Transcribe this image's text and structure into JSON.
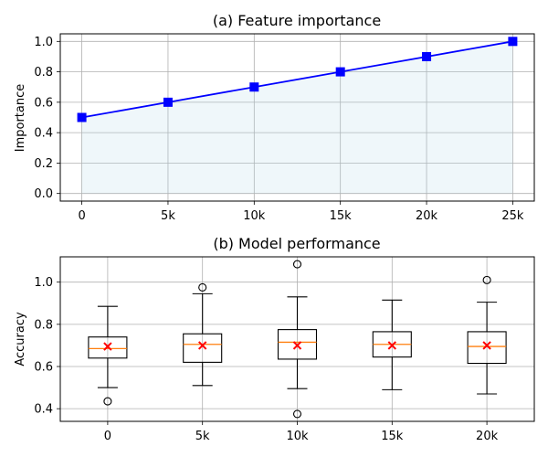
{
  "chart_data": [
    {
      "type": "line",
      "title": "(a) Feature importance",
      "xlabel": "",
      "ylabel": "Importance",
      "x": [
        0,
        5000,
        10000,
        15000,
        20000,
        25000
      ],
      "x_tick_labels": [
        "0",
        "5k",
        "10k",
        "15k",
        "20k",
        "25k"
      ],
      "y_tick_labels": [
        "0.0",
        "0.2",
        "0.4",
        "0.6",
        "0.8",
        "1.0"
      ],
      "series": [
        {
          "values": [
            0.5,
            0.6,
            0.7,
            0.8,
            0.9,
            1.0
          ],
          "color": "#0000ff",
          "marker": "square",
          "fill_below": true,
          "fill_color": "#add8e6"
        }
      ],
      "xlim": [
        -1250,
        26250
      ],
      "ylim": [
        -0.05,
        1.05
      ],
      "grid": true
    },
    {
      "type": "box",
      "title": "(b) Model performance",
      "xlabel": "",
      "ylabel": "Accuracy",
      "categories": [
        "0",
        "5k",
        "10k",
        "15k",
        "20k"
      ],
      "y_tick_labels": [
        "0.4",
        "0.6",
        "0.8",
        "1.0"
      ],
      "boxes": [
        {
          "whisker_low": 0.5,
          "q1": 0.64,
          "median": 0.685,
          "q3": 0.74,
          "whisker_high": 0.885,
          "mean": 0.695,
          "outliers": [
            0.435
          ]
        },
        {
          "whisker_low": 0.51,
          "q1": 0.62,
          "median": 0.705,
          "q3": 0.755,
          "whisker_high": 0.945,
          "mean": 0.7,
          "outliers": [
            0.975
          ]
        },
        {
          "whisker_low": 0.495,
          "q1": 0.635,
          "median": 0.715,
          "q3": 0.775,
          "whisker_high": 0.93,
          "mean": 0.7,
          "outliers": [
            1.085,
            0.375
          ]
        },
        {
          "whisker_low": 0.49,
          "q1": 0.645,
          "median": 0.705,
          "q3": 0.765,
          "whisker_high": 0.915,
          "mean": 0.7,
          "outliers": []
        },
        {
          "whisker_low": 0.47,
          "q1": 0.615,
          "median": 0.695,
          "q3": 0.765,
          "whisker_high": 0.905,
          "mean": 0.7,
          "outliers": [
            1.01
          ]
        }
      ],
      "median_color": "#ff7f0e",
      "mean_color": "#ff0000",
      "ylim": [
        0.34,
        1.12
      ],
      "grid": true
    }
  ]
}
